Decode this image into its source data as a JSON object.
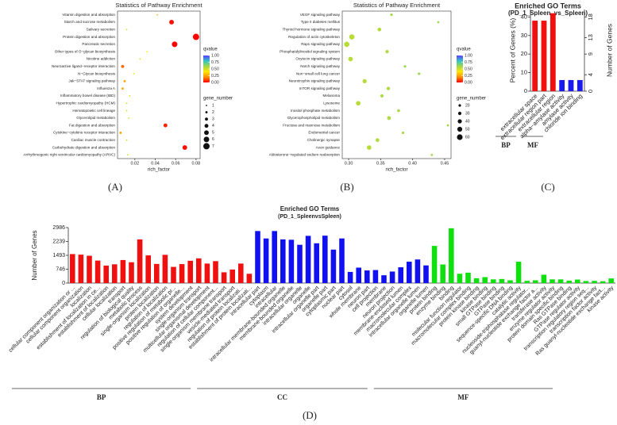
{
  "chart_data": [
    {
      "type": "bubble",
      "panel_label": "(A)",
      "title": "Statistics of Pathway Enrichment",
      "xlabel": "rich_factor",
      "categories": [
        "Vitamin digestion and absorption",
        "Starch and sucrose metabolism",
        "Salivary secretion",
        "Protein digestion and absorption",
        "Pancreatic secretion",
        "Other types of O−glycan biosynthesis",
        "Nicotine addiction",
        "Neuroactive ligand−receptor interaction",
        "N−Glycan biosynthesis",
        "Jak−STAT signaling pathway",
        "Influenza A",
        "Inflammatory bowel disease (IBD)",
        "Hypertrophic cardiomyopathy (HCM)",
        "Hematopoietic cell lineage",
        "Glycerolipid metabolism",
        "Fat digestion and absorption",
        "Cytokine−cytokine receptor interaction",
        "Cardiac muscle contraction",
        "Carbohydrate digestion and absorption",
        "Arrhythmogenic right ventricular cardiomyopathy (ARVC)"
      ],
      "values": [
        0.042,
        0.056,
        0.012,
        0.08,
        0.059,
        0.032,
        0.025,
        0.008,
        0.019,
        0.01,
        0.008,
        0.015,
        0.012,
        0.012,
        0.014,
        0.05,
        0.006,
        0.012,
        0.069,
        0.013
      ],
      "sizes": [
        1,
        5,
        1,
        7,
        6,
        1,
        1,
        3,
        1,
        2,
        2,
        1,
        1,
        1,
        1,
        4,
        2,
        1,
        5,
        1
      ],
      "qvalues": [
        0.3,
        0.02,
        0.5,
        0,
        0,
        0.4,
        0.45,
        0.15,
        0.45,
        0.25,
        0.25,
        0.45,
        0.5,
        0.5,
        0.5,
        0.05,
        0.25,
        0.5,
        0.02,
        0.5
      ],
      "xlim": [
        0.003,
        0.084
      ],
      "xticks": [
        0.02,
        0.04,
        0.06,
        0.08
      ],
      "color_legend": {
        "title": "qvalue",
        "colors": [
          "#ff0000",
          "#ff8c00",
          "#ffe600",
          "#9fd84a",
          "#33c4c4",
          "#5a3cff"
        ],
        "ticks": [
          {
            "value": 1,
            "label": "1.00"
          },
          {
            "value": 0.75,
            "label": "0.75"
          },
          {
            "value": 0.5,
            "label": "0.50"
          },
          {
            "value": 0.25,
            "label": "0.25"
          },
          {
            "value": 0,
            "label": "0.00"
          }
        ]
      },
      "size_legend": {
        "title": "gene_number",
        "values": [
          1,
          2,
          3,
          4,
          5,
          6,
          7
        ]
      }
    },
    {
      "type": "bubble",
      "panel_label": "(B)",
      "title": "Statistics of Pathway Enrichment",
      "xlabel": "rich_factor",
      "categories": [
        "VEGF signaling pathway",
        "Type II diabetes mellitus",
        "Thyroid hormone signaling pathway",
        "Regulation of actin cytoskeleton",
        "Rap1 signaling pathway",
        "Phosphatidylinositol signaling system",
        "Oxytocin signaling pathway",
        "Notch signaling pathway",
        "Non−small cell lung cancer",
        "Neurotrophin signaling pathway",
        "mTOR signaling pathway",
        "Melanoma",
        "Lysosome",
        "Inositol phosphate metabolism",
        "Glycerophospholipid metabolism",
        "Fructose and mannose metabolism",
        "Endometrial cancer",
        "Cholinergic synapse",
        "Axon guidance",
        "Aldosterone−regulated sodium reabsorption"
      ],
      "values": [
        0.367,
        0.44,
        0.348,
        0.305,
        0.297,
        0.36,
        0.303,
        0.388,
        0.41,
        0.325,
        0.362,
        0.352,
        0.315,
        0.378,
        0.363,
        0.455,
        0.385,
        0.345,
        0.332,
        0.43
      ],
      "sizes": [
        20,
        15,
        35,
        55,
        55,
        30,
        45,
        20,
        20,
        40,
        30,
        30,
        45,
        25,
        35,
        15,
        20,
        35,
        45,
        15
      ],
      "qvalues": [
        0.58,
        0.6,
        0.56,
        0.55,
        0.55,
        0.57,
        0.55,
        0.6,
        0.6,
        0.56,
        0.57,
        0.57,
        0.55,
        0.58,
        0.57,
        0.6,
        0.59,
        0.56,
        0.55,
        0.6
      ],
      "xlim": [
        0.29,
        0.46
      ],
      "xticks": [
        {
          "value": 0.3,
          "label": "0.30"
        },
        0.35,
        {
          "value": 0.4,
          "label": "0.40"
        },
        0.45
      ],
      "color_legend": {
        "title": "qvalue",
        "colors": [
          "#ff0000",
          "#ff8c00",
          "#ffe600",
          "#9fd84a",
          "#33c4c4",
          "#5a3cff"
        ],
        "ticks": [
          {
            "value": 1,
            "label": "1.00"
          },
          {
            "value": 0.75,
            "label": "0.75"
          },
          {
            "value": 0.5,
            "label": "0.50"
          },
          {
            "value": 0.25,
            "label": "0.25"
          },
          {
            "value": 0,
            "label": "0.00"
          }
        ]
      },
      "size_legend": {
        "title": "gene_number",
        "values": [
          20,
          30,
          40,
          50,
          60
        ]
      }
    },
    {
      "type": "bar",
      "panel_label": "(C)",
      "title": "Enriched GO Terms",
      "subtitle": "(PD_1_Spleen_vs_Spleen)",
      "ylabel": "Percent of Genes (%)",
      "y2label": "Number of Genes",
      "categories": [
        "extracellular space",
        "extracellular region part",
        "extracellular region",
        "alpha−amylase activity",
        "amylase activity",
        "chloride ion binding"
      ],
      "values": [
        38,
        38,
        42,
        6,
        6,
        6
      ],
      "category_groups": [
        "BP",
        "BP",
        "BP",
        "MF",
        "MF",
        "MF"
      ],
      "group_colors": {
        "BP": "#f01010",
        "MF": "#1a1af0"
      },
      "ylim": [
        0,
        44
      ],
      "yticks": [
        0,
        10,
        20,
        30,
        40
      ],
      "y2lim": [
        0,
        19.8
      ],
      "y2ticks": [
        0,
        4,
        9,
        13,
        18
      ]
    },
    {
      "type": "bar",
      "panel_label": "(D)",
      "title": "Enriched GO Terms",
      "subtitle": "(PD_1_SpleenvsSpleen)",
      "ylabel": "Number of Genes",
      "categories": [
        "cellular component organization or ...",
        "cellular component organization",
        "localization",
        "establishment of localization in ce...",
        "establishment of localization",
        "cellular localization",
        "transport",
        "regulation of biological quality",
        "metabolic process",
        "single-organism localization",
        "protein localization",
        "regulation of localization",
        "positive regulation of metabolic pr...",
        "positive regulation of organelle...",
        "system development",
        "single-organism transport",
        "multicellular organismal development",
        "regulation of cellular component...",
        "single-organism membrane transport",
        "vesicle-mediated transport",
        "regulation of protein localizati...",
        "establishment of protein localizati...",
        "intracellular part",
        "cytoplasm",
        "intracellular",
        "intracellular membrane-bounded organelle",
        "membrane-bounded organelle",
        "intracellular organelle",
        "organelle",
        "intracellular organelle part",
        "organelle part",
        "cytoplasmic part",
        "nuclear part",
        "cytosol",
        "whole membrane",
        "neuron part",
        "cell projection",
        "membrane",
        "neuron projection",
        "membrane-enclosed lumen",
        "macromolecular complex",
        "intracellular organelle lumen",
        "organelle lumen",
        "protein binding",
        "enzyme binding",
        "binding",
        "molecular function regulator",
        "macromolecular complex binding",
        "protein kinase binding",
        "kinase binding",
        "small GTPase binding",
        "GTPase binding",
        "sequence-specific DNA binding",
        "catalytic activity",
        "nucleoside-triphosphatase regulator...",
        "guanyl-nucleotide exchange factor a...",
        "transferase activity",
        "enzyme regulator activity",
        "protein domain specific binding",
        "Ras GTPase binding",
        "GTPase regulator activity",
        "transcription regulatory region seq...",
        "transcription factor activity",
        "Ras guanyl-nucleotide exchange fact...",
        "kinase activity"
      ],
      "values": [
        1560,
        1530,
        1470,
        1210,
        940,
        1010,
        1240,
        1120,
        2350,
        1490,
        1030,
        1520,
        870,
        1020,
        1200,
        1330,
        1050,
        1180,
        580,
        730,
        1050,
        500,
        2800,
        2400,
        2800,
        2350,
        2330,
        2060,
        2540,
        2140,
        2550,
        1800,
        2400,
        600,
        830,
        680,
        700,
        420,
        620,
        850,
        1150,
        1270,
        950,
        2000,
        1000,
        2950,
        500,
        560,
        260,
        320,
        200,
        220,
        150,
        1150,
        120,
        150,
        450,
        200,
        200,
        130,
        190,
        110,
        120,
        100,
        250
      ],
      "category_groups": [
        "BP",
        "BP",
        "BP",
        "BP",
        "BP",
        "BP",
        "BP",
        "BP",
        "BP",
        "BP",
        "BP",
        "BP",
        "BP",
        "BP",
        "BP",
        "BP",
        "BP",
        "BP",
        "BP",
        "BP",
        "BP",
        "BP",
        "CC",
        "CC",
        "CC",
        "CC",
        "CC",
        "CC",
        "CC",
        "CC",
        "CC",
        "CC",
        "CC",
        "CC",
        "CC",
        "CC",
        "CC",
        "CC",
        "CC",
        "CC",
        "CC",
        "CC",
        "CC",
        "MF",
        "MF",
        "MF",
        "MF",
        "MF",
        "MF",
        "MF",
        "MF",
        "MF",
        "MF",
        "MF",
        "MF",
        "MF",
        "MF",
        "MF",
        "MF",
        "MF",
        "MF",
        "MF",
        "MF",
        "MF",
        "MF"
      ],
      "group_colors": {
        "BP": "#f01010",
        "CC": "#1010f0",
        "MF": "#10e010"
      },
      "ylim": [
        0,
        2986
      ],
      "yticks": [
        0,
        746,
        1493,
        2239,
        2986
      ]
    }
  ]
}
